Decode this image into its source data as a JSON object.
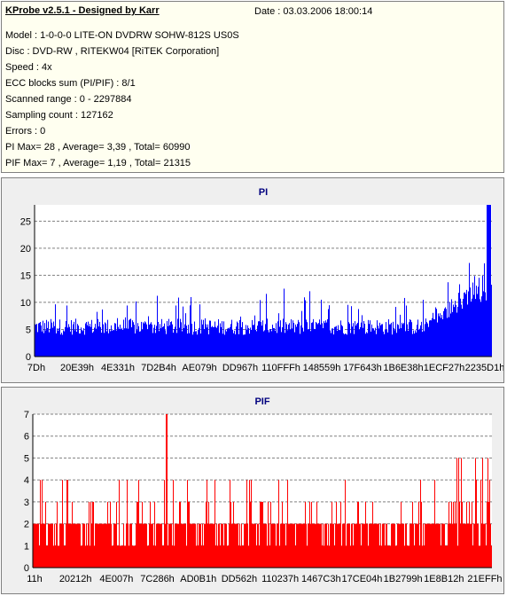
{
  "header": {
    "title": "KProbe v2.5.1 - Designed by Karr",
    "date": "Date : 03.03.2006 18:00:14"
  },
  "info_lines": [
    "Model : 1-0-0-0 LITE-ON DVDRW SOHW-812S  US0S",
    "Disc : DVD-RW , RITEKW04 [RiTEK Corporation]",
    "Speed : 4x",
    "ECC blocks sum (PI/PIF) : 8/1",
    "Scanned range : 0 - 2297884",
    "Sampling count : 127162",
    "Errors : 0",
    "PI Max= 28 , Average= 3,39 , Total= 60990",
    "PIF Max= 7 , Average= 1,19 , Total= 21315"
  ],
  "chart_data": [
    {
      "type": "bar",
      "title": "PI",
      "color": "#0000ff",
      "ylim": [
        0,
        28
      ],
      "yticks": [
        0,
        5,
        10,
        15,
        20,
        25
      ],
      "xtick_labels": [
        "7Dh",
        "20E39h",
        "4E331h",
        "7D2B4h",
        "AE079h",
        "DD967h",
        "110FFFh",
        "148559h",
        "17F643h",
        "1B6E38h",
        "1ECF27h",
        "2235D1h"
      ],
      "grid": "horizontal dashed",
      "max": 28,
      "average": 3.39
    },
    {
      "type": "bar",
      "title": "PIF",
      "color": "#ff0000",
      "ylim": [
        0,
        7
      ],
      "yticks": [
        0,
        1,
        2,
        3,
        4,
        5,
        6,
        7
      ],
      "xtick_labels": [
        "11h",
        "20212h",
        "4E007h",
        "7C286h",
        "AD0B1h",
        "DD562h",
        "110237h",
        "1467C3h",
        "17CE04h",
        "1B2799h",
        "1E8B12h",
        "21EFFh"
      ],
      "grid": "horizontal dashed",
      "max": 7,
      "average": 1.19
    }
  ]
}
